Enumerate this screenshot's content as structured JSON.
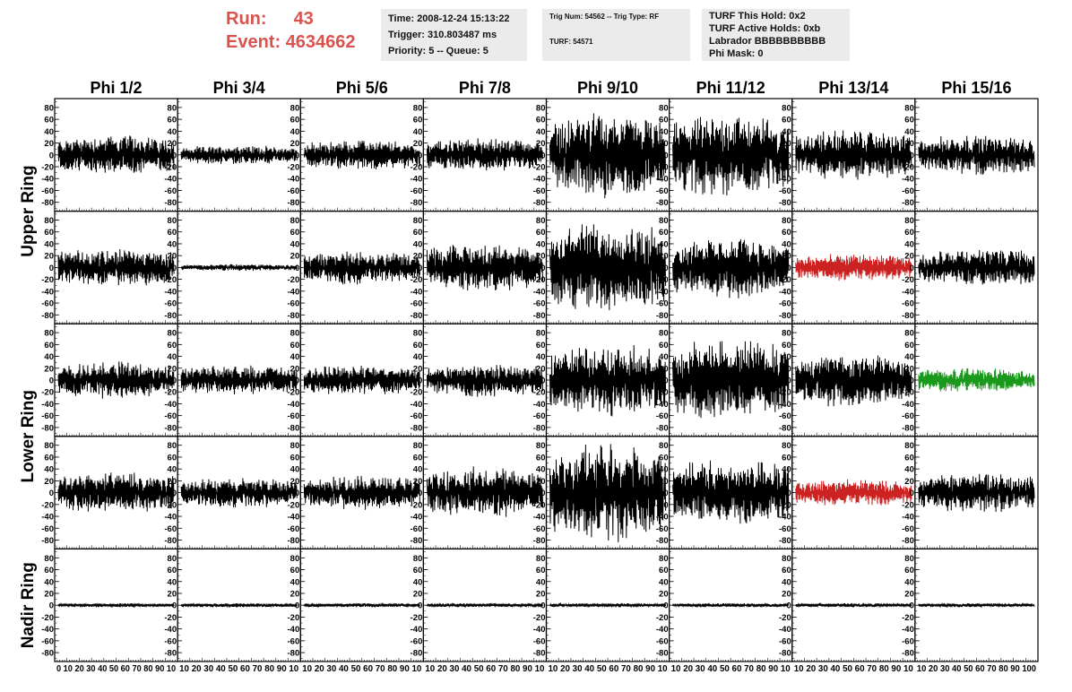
{
  "header": {
    "run_label": "Run:",
    "run_value": "43",
    "event_label": "Event:",
    "event_value": "4634662",
    "info1": [
      "Time: 2008-12-24 15:13:22",
      "Trigger: 310.803487 ms",
      "Priority: 5 -- Queue: 5"
    ],
    "info2": [
      "Trig Num: 54562 -- Trig Type: RF",
      "TURF: 54571"
    ],
    "info3": [
      "TURF This Hold: 0x2",
      "TURF Active Holds: 0xb",
      "Labrador BBBBBBBBBB",
      "Phi Mask: 0"
    ],
    "colors": {
      "run_text": "#d9534f",
      "panel_bg": "#ebebeb"
    }
  },
  "chart_data": {
    "type": "line",
    "columns": [
      "Phi 1/2",
      "Phi 3/4",
      "Phi 5/6",
      "Phi 7/8",
      "Phi 9/10",
      "Phi 11/12",
      "Phi 13/14",
      "Phi 15/16"
    ],
    "row_labels": [
      {
        "text": "Upper Ring",
        "rows": [
          0,
          1
        ]
      },
      {
        "text": "Lower Ring",
        "rows": [
          2,
          3
        ]
      },
      {
        "text": "Nadir Ring",
        "rows": [
          4
        ]
      }
    ],
    "xlim": [
      0,
      100
    ],
    "ylim": [
      -95,
      95
    ],
    "yticks": [
      80,
      60,
      40,
      20,
      0,
      -20,
      -40,
      -60,
      -80
    ],
    "xtick_labels": [
      "0",
      "10",
      "20",
      "30",
      "40",
      "50",
      "60",
      "70",
      "80",
      "90",
      "100"
    ],
    "x_axis_text": [
      "0 10 20 30 40 50 60 70 80 90 10",
      "10 20 30 40 50 60 70 80 90 10",
      "10 20 30 40 50 60 70 80 90 10",
      "10 20 30 40 50 60 70 80 90 10",
      "10 20 30 40 50 60 70 80 90 10",
      "10 20 30 40 50 60 70 80 90 10",
      "10 20 30 40 50 60 70 80 90 10",
      "10 20 30 40 50 60 70 80 90 100"
    ],
    "amplitudes": [
      [
        30,
        14,
        22,
        25,
        62,
        60,
        38,
        30
      ],
      [
        28,
        5,
        25,
        35,
        68,
        45,
        20,
        28
      ],
      [
        28,
        22,
        22,
        25,
        52,
        62,
        40,
        18
      ],
      [
        30,
        22,
        25,
        38,
        72,
        50,
        20,
        30
      ],
      [
        3,
        3,
        3,
        3,
        3,
        3,
        3,
        3
      ]
    ],
    "trace_colors": [
      [
        "#000000",
        "#000000",
        "#000000",
        "#000000",
        "#000000",
        "#000000",
        "#000000",
        "#000000"
      ],
      [
        "#000000",
        "#000000",
        "#000000",
        "#000000",
        "#000000",
        "#000000",
        "#cc2222",
        "#000000"
      ],
      [
        "#000000",
        "#000000",
        "#000000",
        "#000000",
        "#000000",
        "#000000",
        "#000000",
        "#1a9a1a"
      ],
      [
        "#000000",
        "#000000",
        "#000000",
        "#000000",
        "#000000",
        "#000000",
        "#cc2222",
        "#000000"
      ],
      [
        "#000000",
        "#000000",
        "#000000",
        "#000000",
        "#000000",
        "#000000",
        "#000000",
        "#000000"
      ]
    ]
  }
}
